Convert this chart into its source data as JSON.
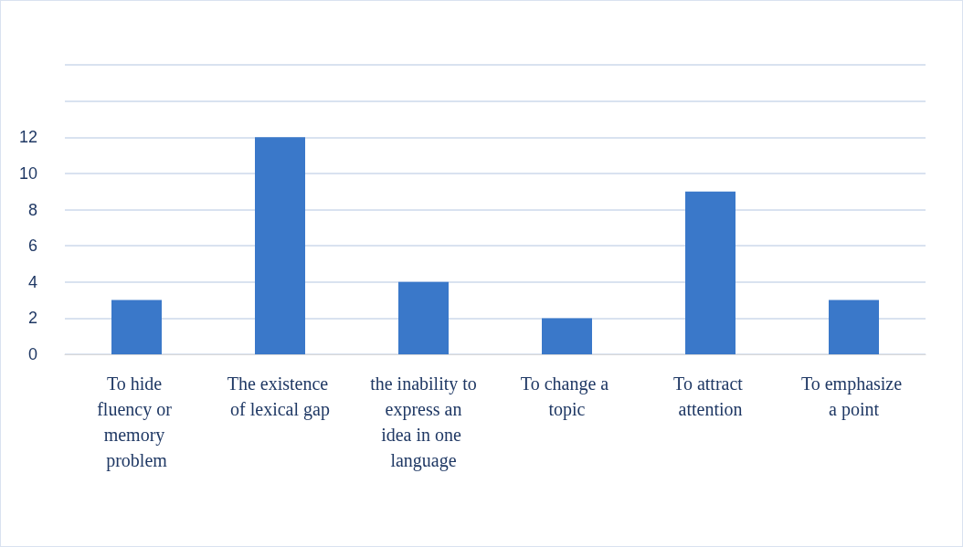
{
  "chart_data": {
    "type": "bar",
    "categories": [
      "To hide fluency or memory problem",
      "The existence of lexical gap",
      "the inability to express an idea in one language",
      "To change a topic",
      "To attract attention",
      "To emphasize a point"
    ],
    "values": [
      3,
      12,
      4,
      2,
      9,
      3
    ],
    "color": "#3a78c9",
    "ylim": [
      0,
      16
    ],
    "yticks": [
      0,
      2,
      4,
      6,
      8,
      10,
      12,
      {
        "value": 14,
        "label": null
      },
      {
        "value": 16,
        "label": null
      }
    ],
    "grid": true
  }
}
